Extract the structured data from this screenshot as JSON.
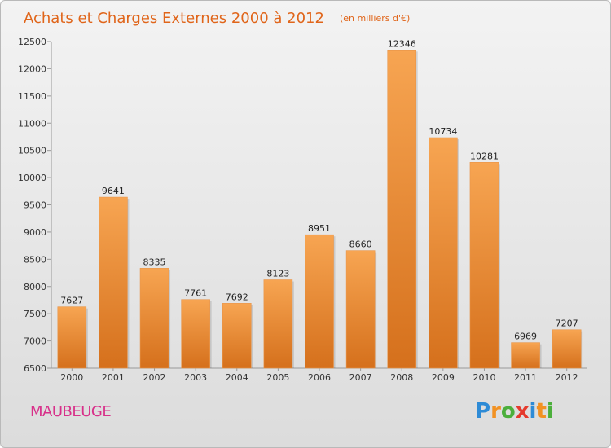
{
  "header": {
    "title": "Achats et Charges Externes 2000 à 2012",
    "unit": "(en milliers d'€)"
  },
  "footer": {
    "city": "MAUBEUGE",
    "logo_letters": [
      {
        "char": "P",
        "color": "#2e8bd6"
      },
      {
        "char": "r",
        "color": "#f29223"
      },
      {
        "char": "o",
        "color": "#4caf3c"
      },
      {
        "char": "x",
        "color": "#e53a2d"
      },
      {
        "char": "i",
        "color": "#2e8bd6"
      },
      {
        "char": "t",
        "color": "#f29223"
      },
      {
        "char": "i",
        "color": "#4caf3c"
      }
    ]
  },
  "chart_data": {
    "type": "bar",
    "title": "Achats et Charges Externes 2000 à 2012",
    "subtitle": "(en milliers d'€)",
    "categories": [
      "2000",
      "2001",
      "2002",
      "2003",
      "2004",
      "2005",
      "2006",
      "2007",
      "2008",
      "2009",
      "2010",
      "2011",
      "2012"
    ],
    "values": [
      7627,
      9641,
      8335,
      7761,
      7692,
      8123,
      8951,
      8660,
      12346,
      10734,
      10281,
      6969,
      7207
    ],
    "ylim": [
      6500,
      12500
    ],
    "yticks": [
      6500,
      7000,
      7500,
      8000,
      8500,
      9000,
      9500,
      10000,
      10500,
      11000,
      11500,
      12000,
      12500
    ],
    "grid": false,
    "bar_color": "#f08a2c"
  }
}
